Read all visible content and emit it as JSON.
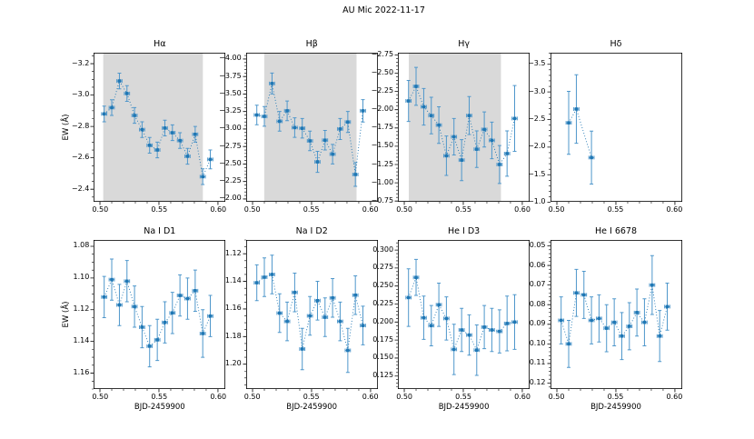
{
  "figure": {
    "suptitle": "AU Mic 2022-11-17",
    "xlabel": "BJD-2459900",
    "ylabel": "EW (Å)",
    "xlim": [
      0.4946,
      0.6062
    ],
    "xticks": [
      0.5,
      0.55,
      0.6
    ],
    "xtick_labels": [
      "0.50",
      "0.55",
      "0.60"
    ],
    "x_minor_step": 0.01,
    "x": [
      0.5036,
      0.51,
      0.5165,
      0.5229,
      0.5293,
      0.5357,
      0.5421,
      0.5486,
      0.555,
      0.5614,
      0.5678,
      0.5742,
      0.5807,
      0.5871,
      0.5935
    ],
    "xerr": 0.0022,
    "colors": {
      "marker": "#1f77b4",
      "errorbar": "#4f97cb",
      "band": "#d9d9d9",
      "spine": "#000000"
    }
  },
  "chart_data": [
    {
      "type": "scatter",
      "style": "errorbar-dotted",
      "title": "Hα",
      "row": 0,
      "col": 0,
      "show_ylabel": true,
      "show_xlabel": false,
      "ylim": [
        -3.27,
        -2.32
      ],
      "yticks": [
        -3.2,
        -3.0,
        -2.8,
        -2.6,
        -2.4
      ],
      "ytick_labels": [
        "−3.2",
        "−3.0",
        "−2.8",
        "−2.6",
        "−2.4"
      ],
      "y_minor_step": 0.05,
      "band": [
        0.5028,
        0.5872
      ],
      "y": [
        -2.88,
        -2.92,
        -3.09,
        -3.01,
        -2.87,
        -2.78,
        -2.68,
        -2.65,
        -2.79,
        -2.76,
        -2.71,
        -2.61,
        -2.75,
        -2.48,
        -2.59
      ],
      "yerr": [
        0.05,
        0.05,
        0.05,
        0.05,
        0.05,
        0.05,
        0.05,
        0.05,
        0.05,
        0.05,
        0.05,
        0.05,
        0.05,
        0.05,
        0.06
      ]
    },
    {
      "type": "scatter",
      "style": "errorbar-dotted",
      "title": "Hβ",
      "row": 0,
      "col": 1,
      "show_ylabel": false,
      "show_xlabel": false,
      "ylim": [
        -4.09,
        -1.96
      ],
      "yticks": [
        -4.0,
        -3.75,
        -3.5,
        -3.25,
        -3.0,
        -2.75,
        -2.5,
        -2.25,
        -2.0
      ],
      "ytick_labels": [
        "−4.00",
        "−3.75",
        "−3.50",
        "−3.25",
        "−3.00",
        "−2.75",
        "−2.50",
        "−2.25",
        "−2.00"
      ],
      "y_minor_step": 0.05,
      "band": [
        0.5099,
        0.5881
      ],
      "y": [
        -3.2,
        -3.18,
        -3.65,
        -3.11,
        -3.26,
        -3.02,
        -3.01,
        -2.83,
        -2.53,
        -2.84,
        -2.64,
        -3.0,
        -3.1,
        -2.35,
        -3.26
      ],
      "yerr": [
        0.14,
        0.14,
        0.15,
        0.14,
        0.14,
        0.14,
        0.14,
        0.14,
        0.15,
        0.14,
        0.14,
        0.15,
        0.15,
        0.17,
        0.16
      ]
    },
    {
      "type": "scatter",
      "style": "errorbar-dotted",
      "title": "Hγ",
      "row": 0,
      "col": 2,
      "show_ylabel": false,
      "show_xlabel": false,
      "ylim": [
        -2.78,
        -0.74
      ],
      "yticks": [
        -2.75,
        -2.5,
        -2.25,
        -2.0,
        -1.75,
        -1.5,
        -1.25,
        -1.0,
        -0.75
      ],
      "ytick_labels": [
        "−2.75",
        "−2.50",
        "−2.25",
        "−2.00",
        "−1.75",
        "−1.50",
        "−1.25",
        "−1.00",
        "−0.75"
      ],
      "y_minor_step": 0.05,
      "band": [
        0.5038,
        0.5819
      ],
      "y": [
        -2.12,
        -2.32,
        -2.04,
        -1.92,
        -1.79,
        -1.37,
        -1.63,
        -1.31,
        -1.92,
        -1.46,
        -1.73,
        -1.58,
        -1.25,
        -1.4,
        -1.88
      ],
      "yerr": [
        0.28,
        0.26,
        0.25,
        0.25,
        0.25,
        0.27,
        0.25,
        0.28,
        0.26,
        0.25,
        0.24,
        0.25,
        0.26,
        0.31,
        0.45
      ]
    },
    {
      "type": "scatter",
      "style": "errorbar-dotted",
      "title": "Hδ",
      "row": 0,
      "col": 3,
      "show_ylabel": false,
      "show_xlabel": false,
      "ylim": [
        -3.71,
        -1.01
      ],
      "yticks": [
        -3.5,
        -3.0,
        -2.5,
        -2.0,
        -1.5,
        -1.0
      ],
      "ytick_labels": [
        "−3.5",
        "−3.0",
        "−2.5",
        "−2.0",
        "−1.5",
        "−1.0"
      ],
      "y_minor_step": 0.1,
      "band": null,
      "x": [
        0.51,
        0.5165,
        0.5293
      ],
      "y": [
        -2.44,
        -2.69,
        -1.81
      ],
      "yerr": [
        0.57,
        0.62,
        0.48
      ]
    },
    {
      "type": "scatter",
      "style": "errorbar-dotted",
      "title": "Na I D1",
      "row": 1,
      "col": 0,
      "show_ylabel": true,
      "show_xlabel": true,
      "ylim": [
        1.076,
        1.17
      ],
      "yticks": [
        1.08,
        1.1,
        1.12,
        1.14,
        1.16
      ],
      "ytick_labels": [
        "1.08",
        "1.10",
        "1.12",
        "1.14",
        "1.16"
      ],
      "y_minor_step": 0.005,
      "band": null,
      "y": [
        1.112,
        1.101,
        1.117,
        1.102,
        1.118,
        1.131,
        1.143,
        1.139,
        1.128,
        1.122,
        1.111,
        1.113,
        1.108,
        1.135,
        1.124
      ],
      "yerr": [
        0.013,
        0.013,
        0.013,
        0.013,
        0.013,
        0.013,
        0.013,
        0.013,
        0.013,
        0.013,
        0.013,
        0.013,
        0.013,
        0.015,
        0.013
      ]
    },
    {
      "type": "scatter",
      "style": "errorbar-dotted",
      "title": "Na I D2",
      "row": 1,
      "col": 1,
      "show_ylabel": false,
      "show_xlabel": true,
      "ylim": [
        1.11,
        1.218
      ],
      "yticks": [
        1.12,
        1.14,
        1.16,
        1.18,
        1.2
      ],
      "ytick_labels": [
        "1.12",
        "1.14",
        "1.16",
        "1.18",
        "1.20"
      ],
      "y_minor_step": 0.005,
      "band": null,
      "y": [
        1.141,
        1.137,
        1.135,
        1.163,
        1.169,
        1.148,
        1.189,
        1.165,
        1.154,
        1.166,
        1.152,
        1.169,
        1.19,
        1.15,
        1.172
      ],
      "yerr": [
        0.013,
        0.014,
        0.014,
        0.014,
        0.014,
        0.014,
        0.015,
        0.014,
        0.014,
        0.014,
        0.014,
        0.014,
        0.016,
        0.014,
        0.014
      ]
    },
    {
      "type": "scatter",
      "style": "errorbar-dotted",
      "title": "He I D3",
      "row": 1,
      "col": 2,
      "show_ylabel": false,
      "show_xlabel": true,
      "ylim": [
        0.314,
        0.107
      ],
      "yticks": [
        0.3,
        0.275,
        0.25,
        0.225,
        0.2,
        0.175,
        0.15,
        0.125
      ],
      "ytick_labels": [
        "0.300",
        "0.275",
        "0.250",
        "0.225",
        "0.200",
        "0.175",
        "0.150",
        "0.125"
      ],
      "y_minor_step": 0.005,
      "band": null,
      "y": [
        0.234,
        0.262,
        0.206,
        0.195,
        0.224,
        0.205,
        0.162,
        0.189,
        0.182,
        0.161,
        0.193,
        0.189,
        0.187,
        0.198,
        0.2
      ],
      "yerr": [
        0.04,
        0.025,
        0.03,
        0.028,
        0.03,
        0.03,
        0.035,
        0.03,
        0.028,
        0.035,
        0.03,
        0.03,
        0.03,
        0.038,
        0.038
      ]
    },
    {
      "type": "scatter",
      "style": "errorbar-dotted",
      "title": "He I 6678",
      "row": 1,
      "col": 3,
      "show_ylabel": false,
      "show_xlabel": true,
      "ylim": [
        0.047,
        0.123
      ],
      "yticks": [
        0.05,
        0.06,
        0.07,
        0.08,
        0.09,
        0.1,
        0.11,
        0.12
      ],
      "ytick_labels": [
        "0.05",
        "0.06",
        "0.07",
        "0.08",
        "0.09",
        "0.10",
        "0.11",
        "0.12"
      ],
      "y_minor_step": 0.002,
      "band": null,
      "y": [
        0.088,
        0.1,
        0.074,
        0.075,
        0.088,
        0.087,
        0.092,
        0.089,
        0.096,
        0.091,
        0.084,
        0.089,
        0.07,
        0.096,
        0.081
      ],
      "yerr": [
        0.012,
        0.012,
        0.012,
        0.012,
        0.012,
        0.012,
        0.012,
        0.012,
        0.012,
        0.012,
        0.012,
        0.012,
        0.015,
        0.013,
        0.012
      ]
    }
  ]
}
